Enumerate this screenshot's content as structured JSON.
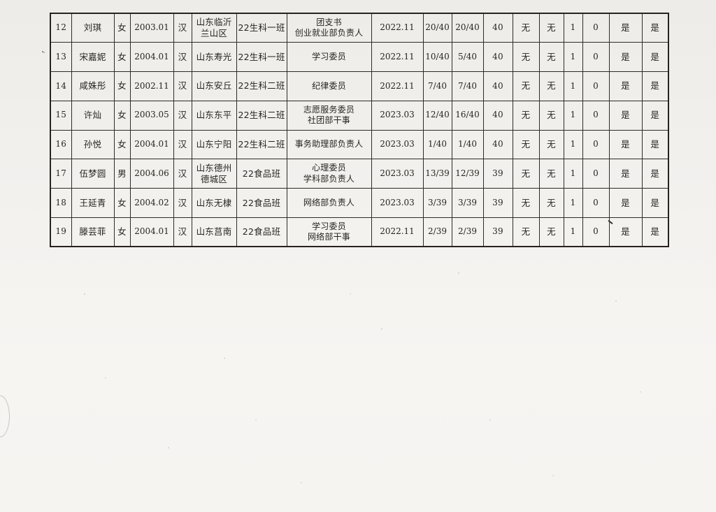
{
  "colors": {
    "paper": "#f2f0ed",
    "ink": "#262420",
    "table_border": "#2b2824"
  },
  "table": {
    "visible_row_numbers": "12-19",
    "rows": [
      {
        "cells": [
          "12",
          "刘琪",
          "女",
          "2003.01",
          "汉",
          "山东临沂\n兰山区",
          "22生科一班",
          "团支书\n创业就业部负责人",
          "2022.11",
          "20/40",
          "20/40",
          "40",
          "无",
          "无",
          "1",
          "0",
          "是",
          "是"
        ]
      },
      {
        "cells": [
          "13",
          "宋嘉妮",
          "女",
          "2004.01",
          "汉",
          "山东寿光",
          "22生科一班",
          "学习委员",
          "2022.11",
          "10/40",
          "5/40",
          "40",
          "无",
          "无",
          "1",
          "0",
          "是",
          "是"
        ]
      },
      {
        "cells": [
          "14",
          "咸姝彤",
          "女",
          "2002.11",
          "汉",
          "山东安丘",
          "22生科二班",
          "纪律委员",
          "2022.11",
          "7/40",
          "7/40",
          "40",
          "无",
          "无",
          "1",
          "0",
          "是",
          "是"
        ]
      },
      {
        "cells": [
          "15",
          "许灿",
          "女",
          "2003.05",
          "汉",
          "山东东平",
          "22生科二班",
          "志愿服务委员\n社团部干事",
          "2023.03",
          "12/40",
          "16/40",
          "40",
          "无",
          "无",
          "1",
          "0",
          "是",
          "是"
        ]
      },
      {
        "cells": [
          "16",
          "孙悦",
          "女",
          "2004.01",
          "汉",
          "山东宁阳",
          "22生科二班",
          "事务助理部负责人",
          "2023.03",
          "1/40",
          "1/40",
          "40",
          "无",
          "无",
          "1",
          "0",
          "是",
          "是"
        ]
      },
      {
        "cells": [
          "17",
          "伍梦圆",
          "男",
          "2004.06",
          "汉",
          "山东德州\n德城区",
          "22食品班",
          "心理委员\n学科部负责人",
          "2023.03",
          "13/39",
          "12/39",
          "39",
          "无",
          "无",
          "1",
          "0",
          "是",
          "是"
        ]
      },
      {
        "cells": [
          "18",
          "王延青",
          "女",
          "2004.02",
          "汉",
          "山东无棣",
          "22食品班",
          "网络部负责人",
          "2023.03",
          "3/39",
          "3/39",
          "39",
          "无",
          "无",
          "1",
          "0",
          "是",
          "是"
        ]
      },
      {
        "cells": [
          "19",
          "滕芸菲",
          "女",
          "2004.01",
          "汉",
          "山东莒南",
          "22食品班",
          "学习委员\n网络部干事",
          "2022.11",
          "2/39",
          "2/39",
          "39",
          "无",
          "无",
          "1",
          "0",
          "是",
          "是"
        ]
      }
    ]
  }
}
